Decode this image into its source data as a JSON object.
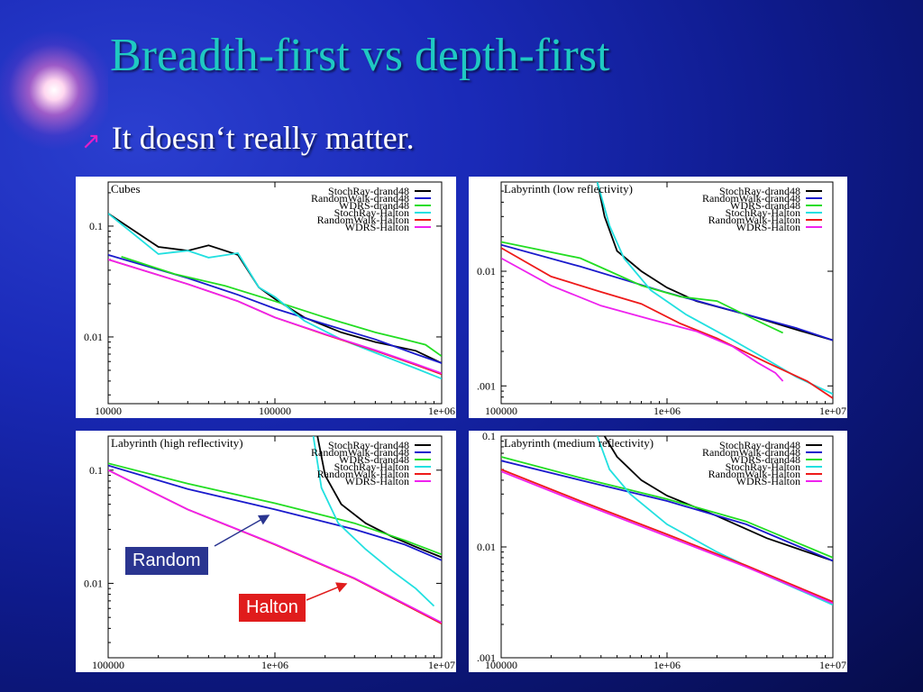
{
  "slide": {
    "title": "Breadth-first vs depth-first",
    "bullet": "It doesn‘t really matter."
  },
  "callouts": {
    "random": "Random",
    "halton": "Halton"
  },
  "colors": {
    "title": "#1fc9c2",
    "bullet_icon": "#e020c8",
    "random_box": "#2a3590",
    "halton_box": "#e01c1c"
  },
  "icons": {
    "bullet": "arrow-up-right-icon"
  },
  "chart_data": [
    {
      "type": "line",
      "title": "Cubes",
      "xscale": "log",
      "yscale": "log",
      "xlim": [
        10000,
        1000000
      ],
      "ylim": [
        0.0025,
        0.25
      ],
      "xticks": [
        {
          "v": 10000,
          "label": "10000"
        },
        {
          "v": 100000,
          "label": "100000"
        },
        {
          "v": 1000000,
          "label": "1e+06"
        }
      ],
      "yticks": [
        {
          "v": 0.1,
          "label": "0.1"
        },
        {
          "v": 0.01,
          "label": "0.01"
        }
      ],
      "legend_position": "top-right",
      "series": [
        {
          "name": "StochRay-drand48",
          "color": "#000000",
          "points": [
            [
              10000,
              0.13
            ],
            [
              20000,
              0.065
            ],
            [
              30000,
              0.06
            ],
            [
              40000,
              0.067
            ],
            [
              60000,
              0.055
            ],
            [
              80000,
              0.028
            ],
            [
              100000,
              0.022
            ],
            [
              150000,
              0.015
            ],
            [
              250000,
              0.011
            ],
            [
              400000,
              0.009
            ],
            [
              700000,
              0.0075
            ],
            [
              1000000,
              0.0058
            ]
          ]
        },
        {
          "name": "RandomWalk-drand48",
          "color": "#1a1acc",
          "points": [
            [
              10000,
              0.055
            ],
            [
              30000,
              0.034
            ],
            [
              60000,
              0.024
            ],
            [
              100000,
              0.018
            ],
            [
              200000,
              0.013
            ],
            [
              400000,
              0.0095
            ],
            [
              700000,
              0.007
            ],
            [
              1000000,
              0.0058
            ]
          ]
        },
        {
          "name": "WDRS-drand48",
          "color": "#22dd22",
          "points": [
            [
              12000,
              0.053
            ],
            [
              25000,
              0.037
            ],
            [
              50000,
              0.029
            ],
            [
              100000,
              0.021
            ],
            [
              200000,
              0.015
            ],
            [
              400000,
              0.011
            ],
            [
              600000,
              0.0095
            ],
            [
              800000,
              0.0085
            ],
            [
              1000000,
              0.0067
            ]
          ]
        },
        {
          "name": "StochRay-Halton",
          "color": "#22e0e0",
          "points": [
            [
              10000,
              0.13
            ],
            [
              20000,
              0.056
            ],
            [
              30000,
              0.06
            ],
            [
              40000,
              0.052
            ],
            [
              60000,
              0.057
            ],
            [
              80000,
              0.028
            ],
            [
              100000,
              0.023
            ],
            [
              150000,
              0.014
            ],
            [
              250000,
              0.0095
            ],
            [
              400000,
              0.0072
            ],
            [
              700000,
              0.0052
            ],
            [
              1000000,
              0.0042
            ]
          ]
        },
        {
          "name": "RandomWalk-Halton",
          "color": "#ee1a1a",
          "points": [
            [
              10000,
              0.05
            ],
            [
              30000,
              0.03
            ],
            [
              60000,
              0.021
            ],
            [
              100000,
              0.015
            ],
            [
              200000,
              0.0105
            ],
            [
              400000,
              0.0075
            ],
            [
              700000,
              0.0056
            ],
            [
              1000000,
              0.0046
            ]
          ]
        },
        {
          "name": "WDRS-Halton",
          "color": "#ee22ee",
          "points": [
            [
              10000,
              0.05
            ],
            [
              30000,
              0.03
            ],
            [
              60000,
              0.021
            ],
            [
              100000,
              0.015
            ],
            [
              200000,
              0.0106
            ],
            [
              400000,
              0.0076
            ],
            [
              700000,
              0.0057
            ],
            [
              1000000,
              0.0047
            ]
          ]
        }
      ]
    },
    {
      "type": "line",
      "title": "Labyrinth (low reflectivity)",
      "xscale": "log",
      "yscale": "log",
      "xlim": [
        100000,
        10000000
      ],
      "ylim": [
        0.0007,
        0.06
      ],
      "xticks": [
        {
          "v": 100000,
          "label": "100000"
        },
        {
          "v": 1000000,
          "label": "1e+06"
        },
        {
          "v": 10000000,
          "label": "1e+07"
        }
      ],
      "yticks": [
        {
          "v": 0.01,
          "label": "0.01"
        },
        {
          "v": 0.001,
          "label": ".001"
        }
      ],
      "legend_position": "top-right",
      "series": [
        {
          "name": "StochRay-drand48",
          "color": "#000000",
          "points": [
            [
              380000,
              0.06
            ],
            [
              420000,
              0.03
            ],
            [
              500000,
              0.015
            ],
            [
              700000,
              0.01
            ],
            [
              1000000,
              0.0072
            ],
            [
              1500000,
              0.0055
            ],
            [
              3000000,
              0.0042
            ],
            [
              6000000,
              0.0031
            ],
            [
              10000000,
              0.0025
            ]
          ]
        },
        {
          "name": "RandomWalk-drand48",
          "color": "#1a1acc",
          "points": [
            [
              100000,
              0.017
            ],
            [
              300000,
              0.011
            ],
            [
              1000000,
              0.0065
            ],
            [
              3000000,
              0.0042
            ],
            [
              6000000,
              0.0032
            ],
            [
              10000000,
              0.0025
            ]
          ]
        },
        {
          "name": "WDRS-drand48",
          "color": "#22dd22",
          "points": [
            [
              100000,
              0.018
            ],
            [
              300000,
              0.013
            ],
            [
              450000,
              0.01
            ],
            [
              700000,
              0.0075
            ],
            [
              1200000,
              0.006
            ],
            [
              2000000,
              0.0055
            ],
            [
              3500000,
              0.0037
            ],
            [
              5000000,
              0.0029
            ]
          ]
        },
        {
          "name": "StochRay-Halton",
          "color": "#22e0e0",
          "points": [
            [
              380000,
              0.06
            ],
            [
              450000,
              0.025
            ],
            [
              550000,
              0.013
            ],
            [
              800000,
              0.0068
            ],
            [
              1300000,
              0.0042
            ],
            [
              2500000,
              0.0025
            ],
            [
              4000000,
              0.0017
            ],
            [
              6000000,
              0.0012
            ],
            [
              10000000,
              0.00085
            ]
          ]
        },
        {
          "name": "RandomWalk-Halton",
          "color": "#ee1a1a",
          "points": [
            [
              100000,
              0.016
            ],
            [
              200000,
              0.009
            ],
            [
              400000,
              0.0066
            ],
            [
              700000,
              0.0052
            ],
            [
              1200000,
              0.0035
            ],
            [
              2000000,
              0.0026
            ],
            [
              4000000,
              0.0016
            ],
            [
              7000000,
              0.0011
            ],
            [
              10000000,
              0.00078
            ]
          ]
        },
        {
          "name": "WDRS-Halton",
          "color": "#ee22ee",
          "points": [
            [
              100000,
              0.013
            ],
            [
              200000,
              0.0075
            ],
            [
              400000,
              0.005
            ],
            [
              800000,
              0.0038
            ],
            [
              1500000,
              0.003
            ],
            [
              2500000,
              0.0022
            ],
            [
              3500000,
              0.0016
            ],
            [
              4500000,
              0.0013
            ],
            [
              5000000,
              0.0011
            ]
          ]
        }
      ]
    },
    {
      "type": "line",
      "title": "Labyrinth (high reflectivity)",
      "xscale": "log",
      "yscale": "log",
      "xlim": [
        100000,
        10000000
      ],
      "ylim": [
        0.0022,
        0.2
      ],
      "xticks": [
        {
          "v": 100000,
          "label": "100000"
        },
        {
          "v": 1000000,
          "label": "1e+06"
        },
        {
          "v": 10000000,
          "label": "1e+07"
        }
      ],
      "yticks": [
        {
          "v": 0.1,
          "label": "0.1"
        },
        {
          "v": 0.01,
          "label": "0.01"
        }
      ],
      "legend_position": "top-right",
      "series": [
        {
          "name": "StochRay-drand48",
          "color": "#000000",
          "points": [
            [
              1800000,
              0.2
            ],
            [
              2000000,
              0.09
            ],
            [
              2500000,
              0.05
            ],
            [
              3500000,
              0.034
            ],
            [
              5000000,
              0.026
            ],
            [
              7000000,
              0.021
            ],
            [
              10000000,
              0.017
            ]
          ]
        },
        {
          "name": "RandomWalk-drand48",
          "color": "#1a1acc",
          "points": [
            [
              100000,
              0.11
            ],
            [
              300000,
              0.068
            ],
            [
              1000000,
              0.045
            ],
            [
              3000000,
              0.03
            ],
            [
              6000000,
              0.022
            ],
            [
              10000000,
              0.016
            ]
          ]
        },
        {
          "name": "WDRS-drand48",
          "color": "#22dd22",
          "points": [
            [
              100000,
              0.115
            ],
            [
              300000,
              0.076
            ],
            [
              1000000,
              0.051
            ],
            [
              3000000,
              0.034
            ],
            [
              6000000,
              0.024
            ],
            [
              10000000,
              0.018
            ]
          ]
        },
        {
          "name": "StochRay-Halton",
          "color": "#22e0e0",
          "points": [
            [
              1700000,
              0.2
            ],
            [
              1900000,
              0.07
            ],
            [
              2400000,
              0.034
            ],
            [
              3500000,
              0.02
            ],
            [
              5000000,
              0.013
            ],
            [
              7000000,
              0.009
            ],
            [
              9000000,
              0.0063
            ]
          ]
        },
        {
          "name": "RandomWalk-Halton",
          "color": "#ee1a1a",
          "points": [
            [
              100000,
              0.1
            ],
            [
              300000,
              0.045
            ],
            [
              1000000,
              0.022
            ],
            [
              3000000,
              0.011
            ],
            [
              6000000,
              0.0065
            ],
            [
              10000000,
              0.0044
            ]
          ]
        },
        {
          "name": "WDRS-Halton",
          "color": "#ee22ee",
          "points": [
            [
              100000,
              0.1
            ],
            [
              300000,
              0.045
            ],
            [
              1000000,
              0.0222
            ],
            [
              3000000,
              0.0111
            ],
            [
              6000000,
              0.0066
            ],
            [
              10000000,
              0.0045
            ]
          ]
        }
      ]
    },
    {
      "type": "line",
      "title": "Labyrinth (medium reflectivity)",
      "xscale": "log",
      "yscale": "log",
      "xlim": [
        100000,
        10000000
      ],
      "ylim": [
        0.001,
        0.1
      ],
      "xticks": [
        {
          "v": 100000,
          "label": "100000"
        },
        {
          "v": 1000000,
          "label": "1e+06"
        },
        {
          "v": 10000000,
          "label": "1e+07"
        }
      ],
      "yticks": [
        {
          "v": 0.1,
          "label": "0.1"
        },
        {
          "v": 0.01,
          "label": "0.01"
        },
        {
          "v": 0.001,
          "label": ".001"
        }
      ],
      "legend_position": "top-right",
      "series": [
        {
          "name": "StochRay-drand48",
          "color": "#000000",
          "points": [
            [
              420000,
              0.1
            ],
            [
              500000,
              0.065
            ],
            [
              700000,
              0.04
            ],
            [
              1000000,
              0.029
            ],
            [
              2000000,
              0.019
            ],
            [
              4000000,
              0.012
            ],
            [
              10000000,
              0.0075
            ]
          ]
        },
        {
          "name": "RandomWalk-drand48",
          "color": "#1a1acc",
          "points": [
            [
              100000,
              0.06
            ],
            [
              300000,
              0.04
            ],
            [
              1000000,
              0.026
            ],
            [
              3000000,
              0.016
            ],
            [
              10000000,
              0.0075
            ]
          ]
        },
        {
          "name": "WDRS-drand48",
          "color": "#22dd22",
          "points": [
            [
              100000,
              0.065
            ],
            [
              300000,
              0.042
            ],
            [
              1000000,
              0.027
            ],
            [
              3000000,
              0.017
            ],
            [
              10000000,
              0.008
            ]
          ]
        },
        {
          "name": "StochRay-Halton",
          "color": "#22e0e0",
          "points": [
            [
              380000,
              0.1
            ],
            [
              450000,
              0.05
            ],
            [
              600000,
              0.03
            ],
            [
              1000000,
              0.016
            ],
            [
              2000000,
              0.009
            ],
            [
              4000000,
              0.0055
            ],
            [
              10000000,
              0.003
            ]
          ]
        },
        {
          "name": "RandomWalk-Halton",
          "color": "#ee1a1a",
          "points": [
            [
              100000,
              0.05
            ],
            [
              300000,
              0.026
            ],
            [
              1000000,
              0.013
            ],
            [
              3000000,
              0.0068
            ],
            [
              10000000,
              0.0032
            ]
          ]
        },
        {
          "name": "WDRS-Halton",
          "color": "#ee22ee",
          "points": [
            [
              100000,
              0.048
            ],
            [
              300000,
              0.025
            ],
            [
              1000000,
              0.0125
            ],
            [
              3000000,
              0.0066
            ],
            [
              10000000,
              0.0031
            ]
          ]
        }
      ]
    }
  ]
}
